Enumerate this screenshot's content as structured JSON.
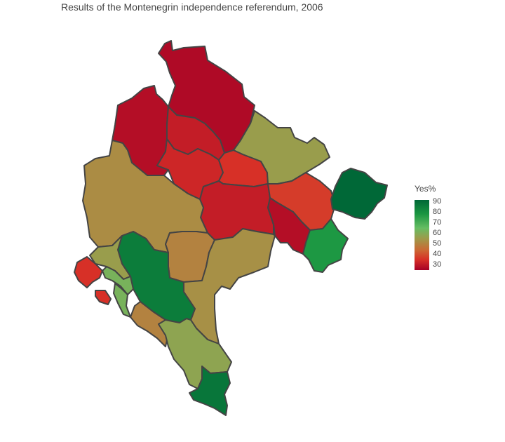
{
  "title": "Results of the Montenegrin independence referendum, 2006",
  "legend": {
    "title": "Yes%",
    "ticks": [
      "90",
      "80",
      "70",
      "60",
      "50",
      "40",
      "30"
    ],
    "scale_min": 25,
    "scale_max": 92,
    "colors": [
      "#a50026",
      "#d73027",
      "#cc6633",
      "#9e9a4a",
      "#66bd63",
      "#1a9641",
      "#006837"
    ]
  },
  "municipalities": [
    {
      "id": "pljevlja",
      "yes": 28
    },
    {
      "id": "zabljak",
      "yes": 31
    },
    {
      "id": "bijelo-polje",
      "yes": 27
    },
    {
      "id": "mojkovac",
      "yes": 31
    },
    {
      "id": "kolasin",
      "yes": 35
    },
    {
      "id": "niksic",
      "yes": 52
    },
    {
      "id": "berane",
      "yes": 49
    },
    {
      "id": "andrijevica",
      "yes": 37
    },
    {
      "id": "rozaje",
      "yes": 92
    },
    {
      "id": "plav",
      "yes": 78
    },
    {
      "id": "herceg-novi",
      "yes": 35
    },
    {
      "id": "kotor",
      "yes": 56
    },
    {
      "id": "tivat",
      "yes": 62
    },
    {
      "id": "cetinje",
      "yes": 86
    },
    {
      "id": "danilovgrad",
      "yes": 50
    },
    {
      "id": "podgorica",
      "yes": 53
    },
    {
      "id": "budva",
      "yes": 58
    },
    {
      "id": "bar",
      "yes": 64
    },
    {
      "id": "ulcinj",
      "yes": 88
    },
    {
      "id": "savnik",
      "yes": 33
    },
    {
      "id": "pluzine",
      "yes": 28
    },
    {
      "id": "plv-east",
      "yes": 56
    }
  ]
}
